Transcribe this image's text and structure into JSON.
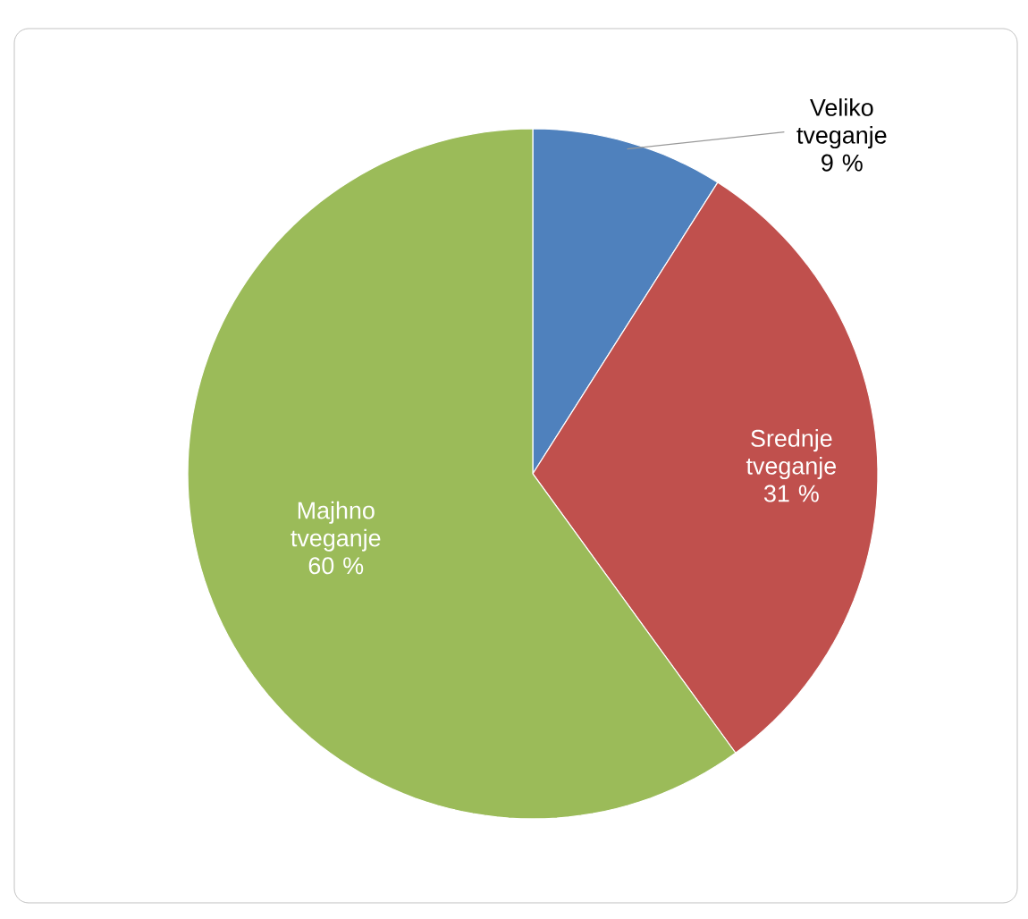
{
  "chart_data": {
    "type": "pie",
    "categories": [
      "Veliko tveganje",
      "Srednje tveganje",
      "Majhno tveganje"
    ],
    "values": [
      9,
      31,
      60
    ],
    "value_labels": [
      "9 %",
      "31 %",
      "60 %"
    ],
    "colors": [
      "#4f81bd",
      "#c0504d",
      "#9bbb59"
    ]
  }
}
